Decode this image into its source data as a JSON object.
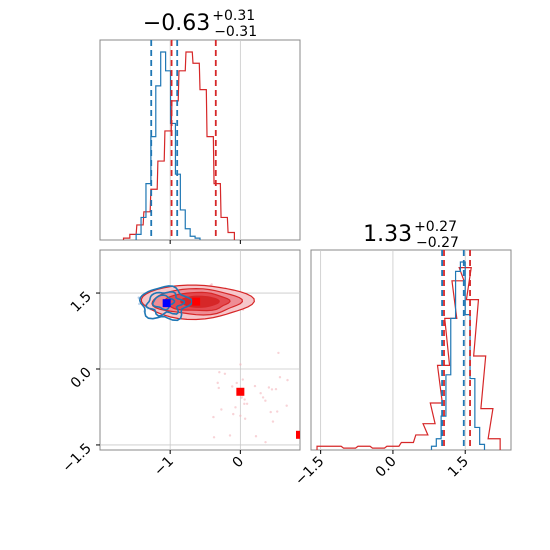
{
  "chart_data": {
    "type": "corner",
    "parameters": [
      {
        "title_main": "−0.63",
        "title_sup": "+0.31",
        "title_sub": "−0.31",
        "xlim": [
          -2.0,
          0.85
        ],
        "ticks": [
          -1,
          0
        ],
        "tick_labels": [
          "−1",
          "0"
        ]
      },
      {
        "title_main": "1.33",
        "title_sup": "+0.27",
        "title_sub": "−0.27",
        "xlim": [
          -1.7,
          2.45
        ],
        "ticks": [
          -1.5,
          0.0,
          1.5
        ],
        "tick_labels": [
          "−1.5",
          "0.0",
          "1.5"
        ]
      }
    ],
    "joint": {
      "xlim": [
        -2.0,
        0.85
      ],
      "ylim": [
        -1.6,
        2.35
      ],
      "yticks": [
        -1.5,
        0.0,
        1.5
      ],
      "ytick_labels": [
        "−1.5",
        "0.0",
        "1.5"
      ],
      "grid": true
    },
    "series": [
      {
        "color": "#d62728",
        "marginal_1": {
          "x": [
            -1.62,
            -1.53,
            -1.43,
            -1.33,
            -1.23,
            -1.13,
            -1.03,
            -0.93,
            -0.83,
            -0.73,
            -0.63,
            -0.53,
            -0.43,
            -0.33,
            -0.23,
            -0.13
          ],
          "y": [
            0.01,
            0.03,
            0.08,
            0.15,
            0.27,
            0.42,
            0.58,
            0.74,
            0.9,
            1.0,
            0.94,
            0.8,
            0.55,
            0.3,
            0.12,
            0.04
          ]
        },
        "quantiles_1": [
          -0.98,
          -0.35
        ],
        "marginal_2": {
          "x": [
            -1.45,
            -1.2,
            -0.9,
            -0.6,
            -0.3,
            0.0,
            0.3,
            0.6,
            0.75,
            0.9,
            1.05,
            1.2,
            1.35,
            1.5,
            1.65,
            1.8,
            1.95,
            2.1
          ],
          "y": [
            0.02,
            0.02,
            0.01,
            0.02,
            0.01,
            0.02,
            0.04,
            0.08,
            0.14,
            0.25,
            0.45,
            0.7,
            0.9,
            0.97,
            0.8,
            0.5,
            0.22,
            0.06
          ]
        },
        "quantiles_2": [
          1.06,
          1.6
        ],
        "markers": [
          [
            -0.63,
            1.33
          ],
          [
            0.0,
            -0.45
          ],
          [
            0.85,
            -1.3
          ]
        ]
      },
      {
        "color": "#1f77b4",
        "marginal_1": {
          "x": [
            -1.45,
            -1.38,
            -1.31,
            -1.24,
            -1.17,
            -1.1,
            -1.03,
            -0.96,
            -0.89,
            -0.82,
            -0.75,
            -0.68,
            -0.61
          ],
          "y": [
            0.03,
            0.12,
            0.3,
            0.55,
            0.82,
            1.0,
            0.9,
            0.62,
            0.35,
            0.16,
            0.06,
            0.02,
            0.01
          ]
        },
        "quantiles_1": [
          -1.27,
          -0.9
        ],
        "marginal_2": {
          "x": [
            0.85,
            0.95,
            1.05,
            1.15,
            1.25,
            1.35,
            1.45,
            1.55,
            1.65,
            1.75,
            1.85
          ],
          "y": [
            0.02,
            0.06,
            0.18,
            0.4,
            0.7,
            0.95,
            1.0,
            0.72,
            0.38,
            0.12,
            0.03
          ]
        },
        "quantiles_2": [
          1.02,
          1.47
        ],
        "markers": [
          [
            -1.05,
            1.3
          ]
        ]
      }
    ]
  }
}
